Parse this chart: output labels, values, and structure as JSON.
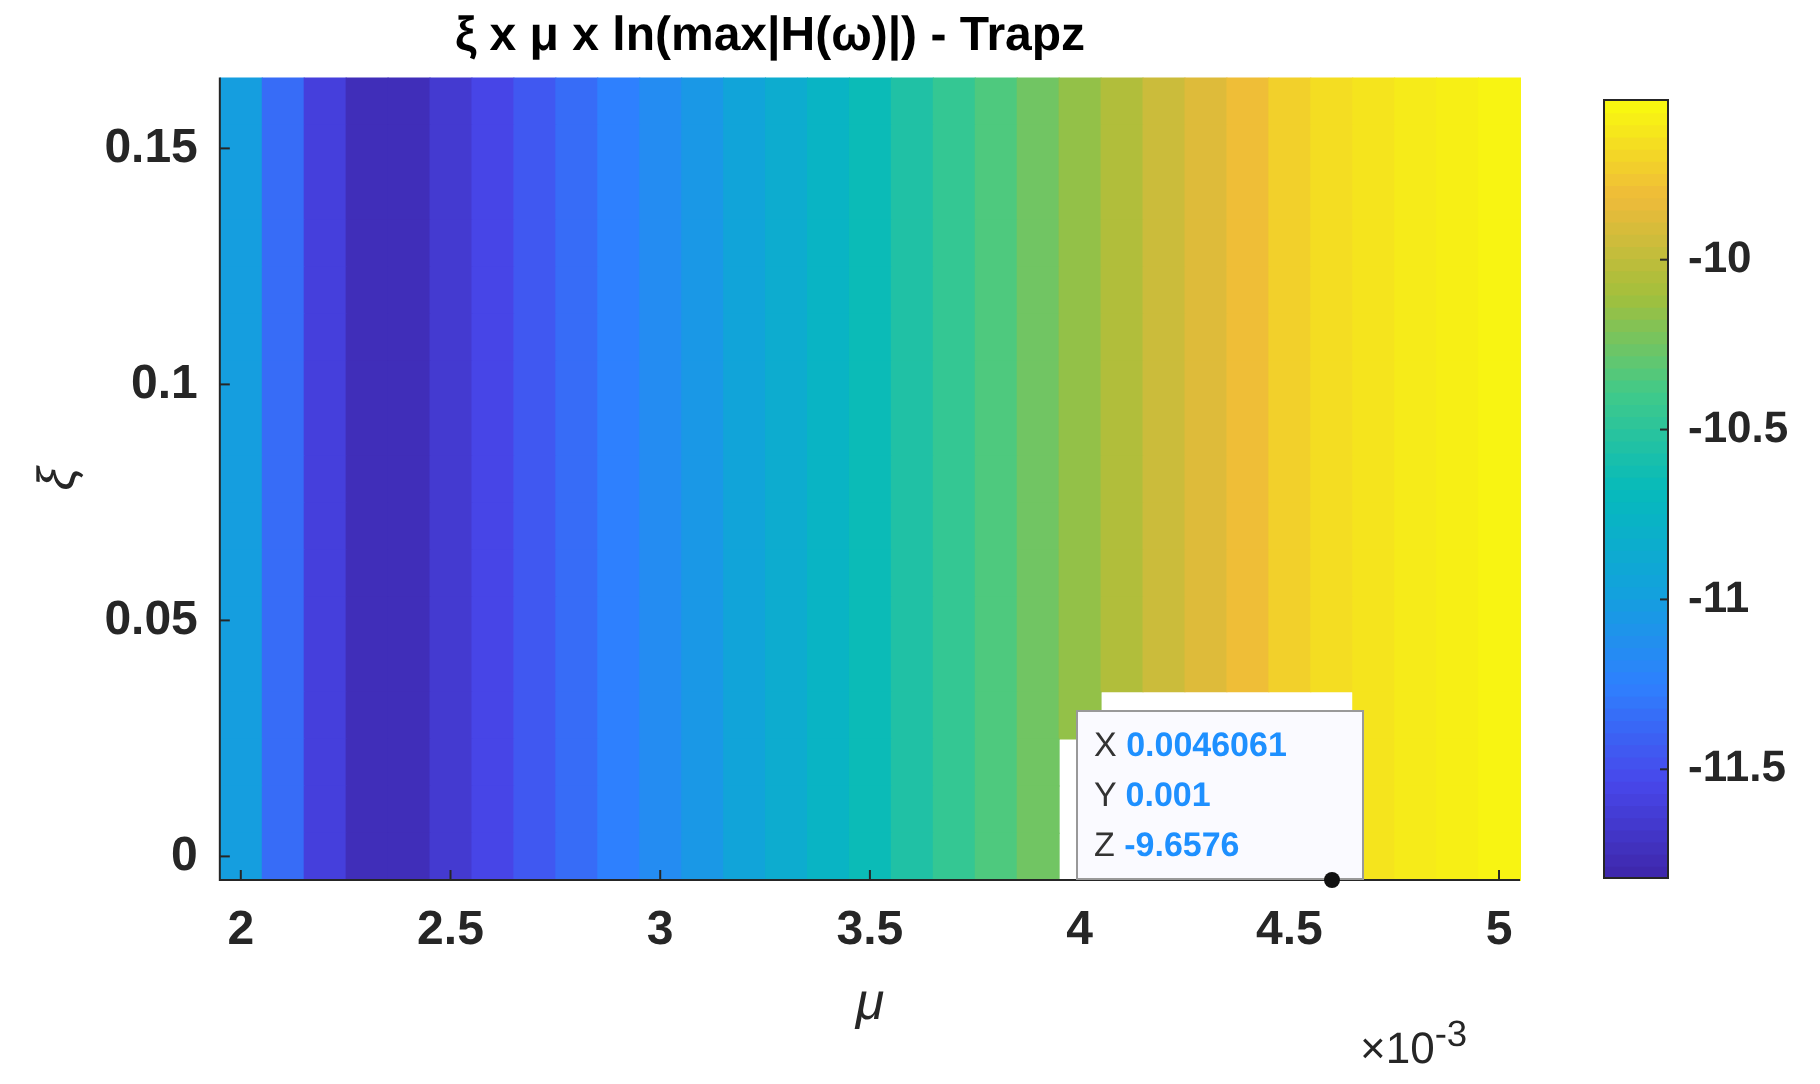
{
  "chart_data": {
    "type": "heatmap",
    "title": "ξ x μ x ln(max|H(ω)|) - Trapz",
    "xlabel": "μ",
    "ylabel": "ξ",
    "categories": [
      "2",
      null,
      null,
      null,
      null,
      "2.5",
      null,
      null,
      null,
      null,
      "3",
      null,
      null,
      null,
      null,
      "3.5",
      null,
      null,
      null,
      null,
      "4",
      null,
      null,
      null,
      null,
      "4.5",
      null,
      null,
      null,
      null,
      "5"
    ],
    "y_categories": [
      null,
      "0.15",
      null,
      null,
      null,
      null,
      "0.1",
      null,
      null,
      null,
      null,
      "0.05",
      null,
      null,
      null,
      null,
      "0"
    ],
    "cells": [
      [
        -11.0,
        -11.35,
        -11.6,
        -11.75,
        -11.75,
        -11.65,
        -11.55,
        -11.45,
        -11.35,
        -11.25,
        -11.15,
        -11.05,
        -10.95,
        -10.85,
        -10.75,
        -10.65,
        -10.55,
        -10.45,
        -10.35,
        -10.25,
        -10.15,
        -10.05,
        -9.95,
        -9.88,
        -9.8,
        -9.72,
        -9.66,
        -9.63,
        -9.6,
        -9.58,
        -9.56
      ],
      [
        -11.0,
        -11.35,
        -11.6,
        -11.75,
        -11.75,
        -11.65,
        -11.55,
        -11.45,
        -11.35,
        -11.25,
        -11.15,
        -11.05,
        -10.95,
        -10.85,
        -10.75,
        -10.65,
        -10.55,
        -10.45,
        -10.35,
        -10.25,
        -10.15,
        -10.05,
        -9.95,
        -9.88,
        -9.8,
        -9.72,
        -9.66,
        -9.63,
        -9.6,
        -9.58,
        -9.56
      ],
      [
        -11.0,
        -11.35,
        -11.6,
        -11.75,
        -11.75,
        -11.65,
        -11.55,
        -11.45,
        -11.35,
        -11.25,
        -11.15,
        -11.05,
        -10.95,
        -10.85,
        -10.75,
        -10.65,
        -10.55,
        -10.45,
        -10.35,
        -10.25,
        -10.15,
        -10.05,
        -9.95,
        -9.88,
        -9.8,
        -9.72,
        -9.66,
        -9.63,
        -9.6,
        -9.58,
        -9.56
      ],
      [
        -11.0,
        -11.35,
        -11.6,
        -11.75,
        -11.75,
        -11.65,
        -11.55,
        -11.45,
        -11.35,
        -11.25,
        -11.15,
        -11.05,
        -10.95,
        -10.85,
        -10.75,
        -10.65,
        -10.55,
        -10.45,
        -10.35,
        -10.25,
        -10.15,
        -10.05,
        -9.95,
        -9.88,
        -9.8,
        -9.72,
        -9.66,
        -9.63,
        -9.6,
        -9.58,
        -9.56
      ],
      [
        -11.0,
        -11.35,
        -11.6,
        -11.75,
        -11.75,
        -11.65,
        -11.55,
        -11.45,
        -11.35,
        -11.25,
        -11.15,
        -11.05,
        -10.95,
        -10.85,
        -10.75,
        -10.65,
        -10.55,
        -10.45,
        -10.35,
        -10.25,
        -10.15,
        -10.05,
        -9.95,
        -9.88,
        -9.8,
        -9.72,
        -9.66,
        -9.63,
        -9.6,
        -9.58,
        -9.56
      ],
      [
        -11.0,
        -11.35,
        -11.6,
        -11.75,
        -11.75,
        -11.65,
        -11.55,
        -11.45,
        -11.35,
        -11.25,
        -11.15,
        -11.05,
        -10.95,
        -10.85,
        -10.75,
        -10.65,
        -10.55,
        -10.45,
        -10.35,
        -10.25,
        -10.15,
        -10.05,
        -9.95,
        -9.88,
        -9.8,
        -9.72,
        -9.66,
        -9.63,
        -9.6,
        -9.58,
        -9.56
      ],
      [
        -11.0,
        -11.35,
        -11.6,
        -11.75,
        -11.75,
        -11.65,
        -11.55,
        -11.45,
        -11.35,
        -11.25,
        -11.15,
        -11.05,
        -10.95,
        -10.85,
        -10.75,
        -10.65,
        -10.55,
        -10.45,
        -10.35,
        -10.25,
        -10.15,
        -10.05,
        -9.95,
        -9.88,
        -9.8,
        -9.72,
        -9.66,
        -9.63,
        -9.6,
        -9.58,
        -9.56
      ],
      [
        -11.0,
        -11.35,
        -11.6,
        -11.75,
        -11.75,
        -11.65,
        -11.55,
        -11.45,
        -11.35,
        -11.25,
        -11.15,
        -11.05,
        -10.95,
        -10.85,
        -10.75,
        -10.65,
        -10.55,
        -10.45,
        -10.35,
        -10.25,
        -10.15,
        -10.05,
        -9.95,
        -9.88,
        -9.8,
        -9.72,
        -9.66,
        -9.63,
        -9.6,
        -9.58,
        -9.56
      ],
      [
        -11.0,
        -11.35,
        -11.6,
        -11.75,
        -11.75,
        -11.65,
        -11.55,
        -11.45,
        -11.35,
        -11.25,
        -11.15,
        -11.05,
        -10.95,
        -10.85,
        -10.75,
        -10.65,
        -10.55,
        -10.45,
        -10.35,
        -10.25,
        -10.15,
        -10.05,
        -9.95,
        -9.88,
        -9.8,
        -9.72,
        -9.66,
        -9.63,
        -9.6,
        -9.58,
        -9.56
      ],
      [
        -11.0,
        -11.35,
        -11.6,
        -11.75,
        -11.75,
        -11.65,
        -11.55,
        -11.45,
        -11.35,
        -11.25,
        -11.15,
        -11.05,
        -10.95,
        -10.85,
        -10.75,
        -10.65,
        -10.55,
        -10.45,
        -10.35,
        -10.25,
        -10.15,
        -10.05,
        -9.95,
        -9.88,
        -9.8,
        -9.72,
        -9.66,
        -9.63,
        -9.6,
        -9.58,
        -9.56
      ],
      [
        -11.0,
        -11.35,
        -11.6,
        -11.75,
        -11.75,
        -11.65,
        -11.55,
        -11.45,
        -11.35,
        -11.25,
        -11.15,
        -11.05,
        -10.95,
        -10.85,
        -10.75,
        -10.65,
        -10.55,
        -10.45,
        -10.35,
        -10.25,
        -10.15,
        -10.05,
        -9.95,
        -9.88,
        -9.8,
        -9.72,
        -9.66,
        -9.63,
        -9.6,
        -9.58,
        -9.56
      ],
      [
        -11.0,
        -11.35,
        -11.6,
        -11.75,
        -11.75,
        -11.65,
        -11.55,
        -11.45,
        -11.35,
        -11.25,
        -11.15,
        -11.05,
        -10.95,
        -10.85,
        -10.75,
        -10.65,
        -10.55,
        -10.45,
        -10.35,
        -10.25,
        -10.15,
        -10.05,
        -9.95,
        -9.88,
        -9.8,
        -9.72,
        -9.66,
        -9.63,
        -9.6,
        -9.58,
        -9.56
      ],
      [
        -11.0,
        -11.35,
        -11.6,
        -11.75,
        -11.75,
        -11.65,
        -11.55,
        -11.45,
        -11.35,
        -11.25,
        -11.15,
        -11.05,
        -10.95,
        -10.85,
        -10.75,
        -10.65,
        -10.55,
        -10.45,
        -10.35,
        -10.25,
        -10.15,
        -10.05,
        -9.95,
        -9.88,
        -9.8,
        -9.72,
        -9.66,
        -9.63,
        -9.6,
        -9.58,
        -9.56
      ],
      [
        -11.0,
        -11.35,
        -11.6,
        -11.75,
        -11.75,
        -11.65,
        -11.55,
        -11.45,
        -11.35,
        -11.25,
        -11.15,
        -11.05,
        -10.95,
        -10.85,
        -10.75,
        -10.65,
        -10.55,
        -10.45,
        -10.35,
        -10.25,
        -10.15,
        null,
        null,
        null,
        null,
        null,
        null,
        -9.63,
        -9.6,
        -9.58,
        -9.56
      ],
      [
        -11.0,
        -11.35,
        -11.6,
        -11.75,
        -11.75,
        -11.65,
        -11.55,
        -11.45,
        -11.35,
        -11.25,
        -11.15,
        -11.05,
        -10.95,
        -10.85,
        -10.75,
        -10.65,
        -10.55,
        -10.45,
        -10.35,
        -10.25,
        null,
        null,
        null,
        null,
        null,
        null,
        null,
        -9.63,
        -9.6,
        -9.58,
        -9.56
      ],
      [
        -11.0,
        -11.35,
        -11.6,
        -11.75,
        -11.75,
        -11.65,
        -11.55,
        -11.45,
        -11.35,
        -11.25,
        -11.15,
        -11.05,
        -10.95,
        -10.85,
        -10.75,
        -10.65,
        -10.55,
        -10.45,
        -10.35,
        -10.25,
        null,
        null,
        null,
        null,
        null,
        null,
        null,
        -9.63,
        -9.6,
        -9.58,
        -9.56
      ],
      [
        -11.0,
        -11.35,
        -11.6,
        -11.75,
        -11.75,
        -11.65,
        -11.55,
        -11.45,
        -11.35,
        -11.25,
        -11.15,
        -11.05,
        -10.95,
        -10.85,
        -10.75,
        -10.65,
        -10.55,
        -10.45,
        -10.35,
        -10.25,
        null,
        null,
        null,
        null,
        null,
        null,
        null,
        -9.63,
        -9.6,
        -9.58,
        -9.56
      ]
    ],
    "clim": [
      -11.82,
      -9.53
    ],
    "cticks": [
      -11.5,
      -11,
      -10.5,
      -10
    ],
    "annotations": [
      "X 0.0046061\nY 0.001\nZ -9.6576",
      "×10$^{-3}$"
    ]
  }
}
